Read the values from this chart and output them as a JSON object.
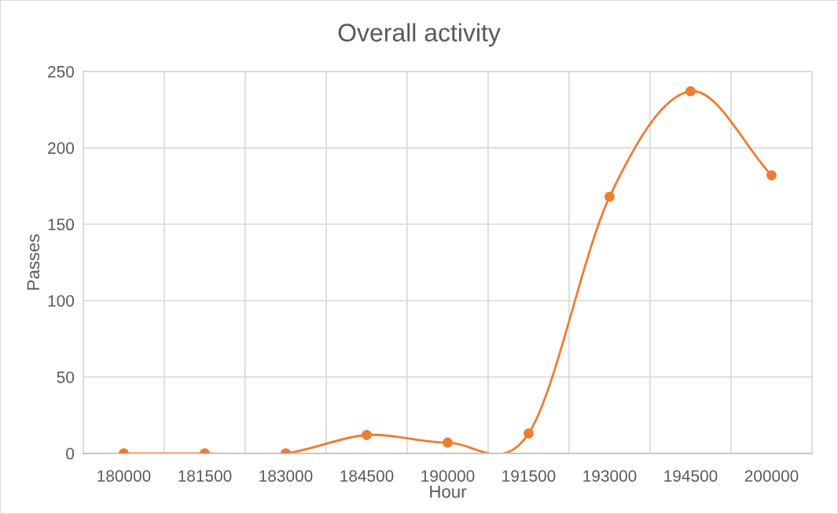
{
  "chart_data": {
    "type": "line",
    "title": "Overall activity",
    "xlabel": "Hour",
    "ylabel": "Passes",
    "categories": [
      "180000",
      "181500",
      "183000",
      "184500",
      "190000",
      "191500",
      "193000",
      "194500",
      "200000"
    ],
    "series": [
      {
        "color": "#ed7d31",
        "values": [
          0,
          0,
          0,
          12,
          7,
          13,
          168,
          237,
          182
        ]
      }
    ],
    "ylim": [
      0,
      250
    ],
    "yticks": [
      0,
      50,
      100,
      150,
      200,
      250
    ],
    "grid": true,
    "marker": "circle",
    "line_style": "solid"
  }
}
